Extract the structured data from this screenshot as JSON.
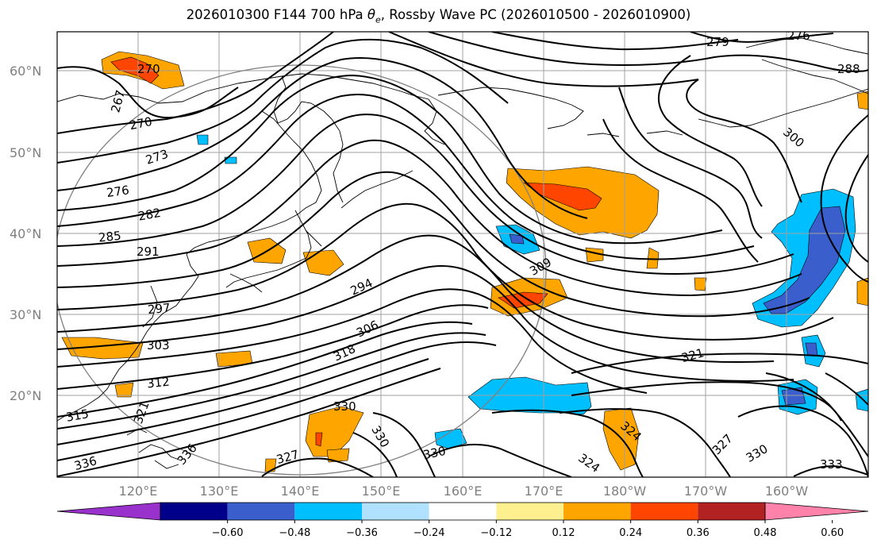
{
  "title": {
    "prefix": "2026010300 F144 700 hPa ",
    "theta": "θ",
    "theta_sub": "e",
    "suffix": ", Rossby Wave PC (2026010500 - 2026010900)"
  },
  "lat_labels": [
    "60°N",
    "50°N",
    "40°N",
    "30°N",
    "20°N"
  ],
  "lon_labels": [
    "120°E",
    "130°E",
    "140°E",
    "150°E",
    "160°E",
    "170°E",
    "180°W",
    "170°W",
    "160°W"
  ],
  "contour_labels": {
    "c270": "270",
    "c267": "267",
    "c270b": "270",
    "c273": "273",
    "c276": "276",
    "c282": "282",
    "c285": "285",
    "c291": "291",
    "c297": "297",
    "c303": "303",
    "c312": "312",
    "c315": "315",
    "c321l": "321",
    "c336": "336",
    "c330a": "330",
    "c330b": "330",
    "c327a": "327",
    "c336b": "336",
    "c294": "294",
    "c306": "306",
    "c318": "318",
    "c309": "309",
    "c279": "279",
    "c276r": "276",
    "c288": "288",
    "c300": "300",
    "c321": "321",
    "c324a": "324",
    "c324b": "324",
    "c327b": "327",
    "c330c": "330",
    "c330d": "330",
    "c333": "333"
  },
  "colorbar": {
    "colors": [
      "#9932cc",
      "#00008b",
      "#3a5fcd",
      "#00bfff",
      "#b0e2ff",
      "#ffffff",
      "#fff08f",
      "#ffa500",
      "#ff4500",
      "#b22222",
      "#ff82ab"
    ],
    "ticks": [
      "−0.60",
      "−0.48",
      "−0.36",
      "−0.24",
      "−0.12",
      "0.12",
      "0.24",
      "0.36",
      "0.48",
      "0.60"
    ]
  }
}
